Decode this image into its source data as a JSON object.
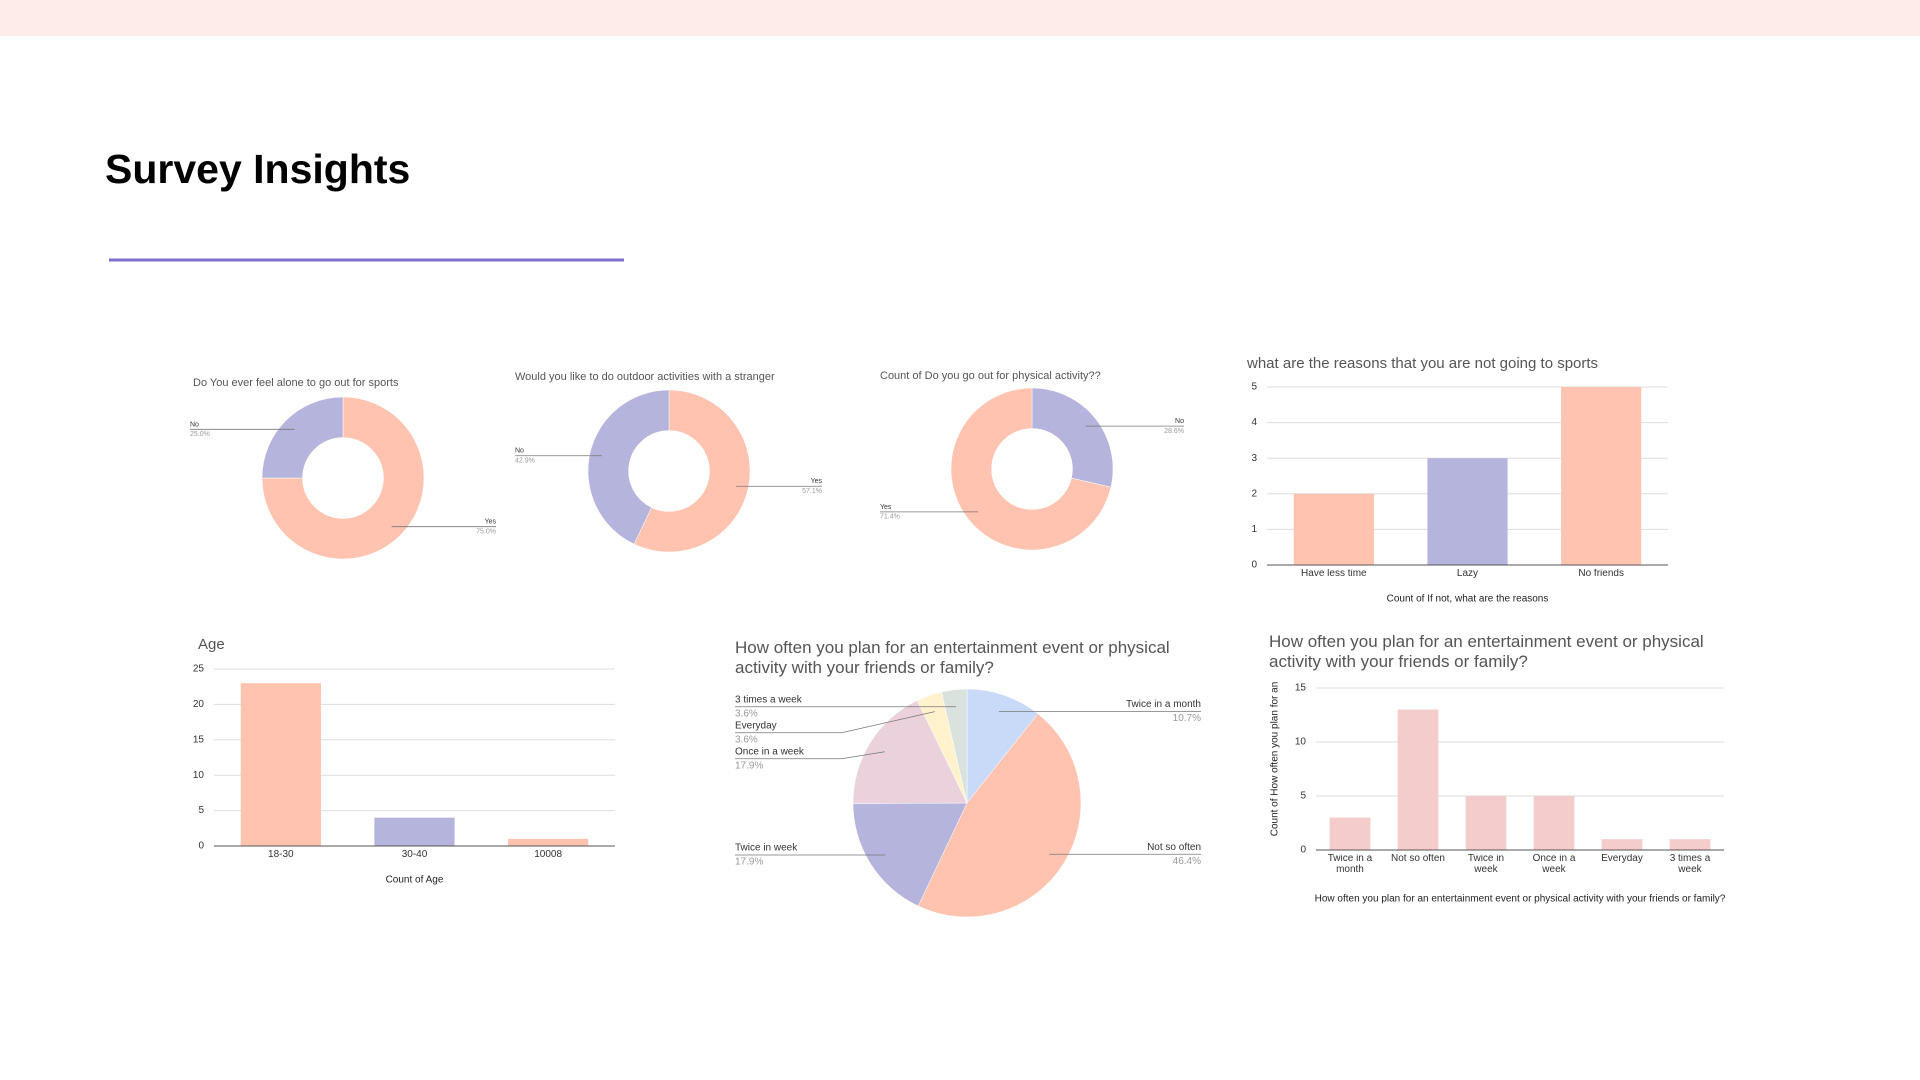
{
  "title": "Survey Insights",
  "chart_data": [
    {
      "type": "pie",
      "donut": true,
      "title": "Do You  ever feel alone to go out for sports",
      "categories": [
        "Yes",
        "No"
      ],
      "values": [
        75,
        25
      ],
      "value_labels": [
        "75.0%",
        "25.0%"
      ],
      "colors": [
        "#ffc3b0",
        "#b4b4dc"
      ]
    },
    {
      "type": "pie",
      "donut": true,
      "title": "Would you  like to do outdoor activities with a stranger",
      "categories": [
        "Yes",
        "No"
      ],
      "values": [
        57.1,
        42.9
      ],
      "value_labels": [
        "57.1%",
        "42.9%"
      ],
      "colors": [
        "#ffc3b0",
        "#b4b4dc"
      ]
    },
    {
      "type": "pie",
      "donut": true,
      "title": "Count of Do you go out for physical activity??",
      "categories": [
        "No",
        "Yes"
      ],
      "values": [
        28.6,
        71.4
      ],
      "value_labels": [
        "28.6%",
        "71.4%"
      ],
      "colors": [
        "#b4b4dc",
        "#ffc3b0"
      ]
    },
    {
      "type": "bar",
      "title": "what are the reasons that you are not going to sports",
      "categories": [
        "Have less time",
        "Lazy",
        "No friends"
      ],
      "values": [
        2,
        3,
        5
      ],
      "colors": [
        "#ffc3b0",
        "#b4b4dc",
        "#ffc3b0"
      ],
      "ylim": [
        0,
        5
      ],
      "yticks": [
        0,
        1,
        2,
        3,
        4,
        5
      ],
      "grid": true,
      "xlabel": "Count of If not, what are the reasons"
    },
    {
      "type": "bar",
      "title": "Age",
      "categories": [
        "18-30",
        "30-40",
        "10008"
      ],
      "values": [
        23,
        4,
        1
      ],
      "colors": [
        "#ffc3b0",
        "#b4b4dc",
        "#ffc3b0"
      ],
      "ylim": [
        0,
        25
      ],
      "yticks": [
        0,
        5,
        10,
        15,
        20,
        25
      ],
      "grid": true,
      "xlabel": "Count of Age"
    },
    {
      "type": "pie",
      "donut": false,
      "title": "How often you plan for an entertainment event or physical activity with your friends or family?",
      "categories": [
        "Twice in a month",
        "Not so often",
        "Twice in week",
        "Once in a week",
        "Everyday",
        "3 times a week"
      ],
      "values": [
        10.7,
        46.4,
        17.9,
        17.9,
        3.6,
        3.6
      ],
      "value_labels": [
        "10.7%",
        "46.4%",
        "17.9%",
        "17.9%",
        "3.6%",
        "3.6%"
      ],
      "colors": [
        "#c9daf8",
        "#ffc3b0",
        "#b4b4dc",
        "#ead1dc",
        "#fff2cc",
        "#d9e2dc"
      ]
    },
    {
      "type": "bar",
      "title": "How often you plan for an entertainment event or physical activity with your friends or family?",
      "categories": [
        "Twice in a month",
        "Not so often",
        "Twice in week",
        "Once in a week",
        "Everyday",
        "3 times a week"
      ],
      "values": [
        3,
        13,
        5,
        5,
        1,
        1
      ],
      "color": "#f4cccc",
      "ylim": [
        0,
        15
      ],
      "yticks": [
        0,
        5,
        10,
        15
      ],
      "grid": true,
      "ylabel": "Count of How often you plan for an",
      "xlabel": "How often you plan for an entertainment event or physical activity with your friends or family?"
    }
  ]
}
